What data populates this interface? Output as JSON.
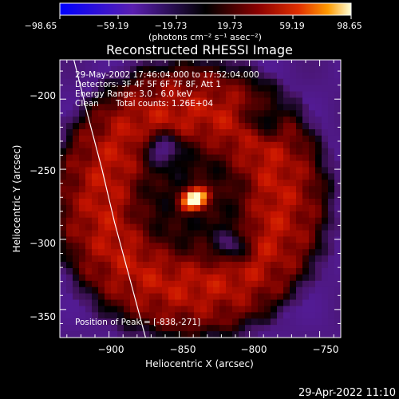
{
  "colorbar": {
    "tick_labels": [
      "−98.65",
      "−59.19",
      "−19.73",
      "19.73",
      "59.19",
      "98.65"
    ],
    "units_label": "(photons cm⁻² s⁻¹ asec⁻²)",
    "range": [
      -98.65,
      98.65
    ]
  },
  "timestamp": "29-Apr-2022 11:10",
  "chart_data": {
    "type": "heatmap",
    "title": "Reconstructed RHESSI Image",
    "xlabel": "Heliocentric X (arcsec)",
    "ylabel": "Heliocentric Y (arcsec)",
    "xlim": [
      -935,
      -735
    ],
    "ylim": [
      -370,
      -172
    ],
    "x_ticks": [
      -900,
      -850,
      -800,
      -750
    ],
    "y_ticks": [
      -200,
      -250,
      -300,
      -350
    ],
    "x_tick_labels": [
      "−900",
      "−850",
      "−800",
      "−750"
    ],
    "y_tick_labels": [
      "−200",
      "−250",
      "−300",
      "−350"
    ],
    "peak": [
      -838,
      -271
    ],
    "annotations": [
      "29-May-2002 17:46:04.000 to 17:52:04.000",
      "Detectors: 3F 4F 5F 6F 7F 8F, Att 1",
      "Energy Range: 3.0 - 6.0 keV",
      "Clean",
      "Total counts: 1.26E+04"
    ],
    "peak_label": "Position of Peak = [-838,-271]",
    "limb_curve": [
      [
        -925,
        -172
      ],
      [
        -915,
        -212
      ],
      [
        -905,
        -250
      ],
      [
        -896,
        -288
      ],
      [
        -886,
        -325
      ],
      [
        -874,
        -370
      ]
    ],
    "colors": {
      "limb": "#ffffff",
      "background": "#000000"
    }
  }
}
